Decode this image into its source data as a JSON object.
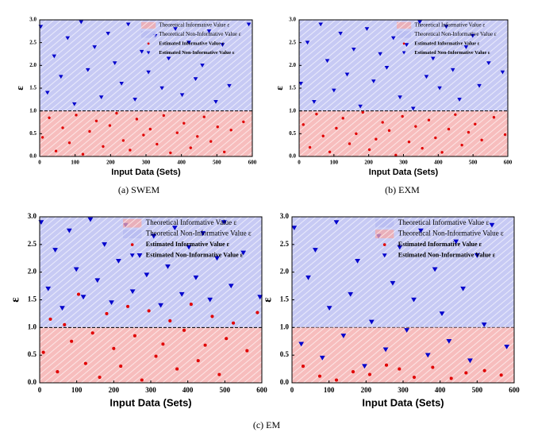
{
  "captions": [
    "(a) SWEM",
    "(b) EXM",
    "(c) EM"
  ],
  "chart_data": [
    {
      "type": "scatter",
      "x_label": "Input Data (Sets)",
      "y_label": "ε",
      "xlim": [
        0,
        600
      ],
      "xticks": [
        0,
        100,
        200,
        300,
        400,
        500,
        600
      ],
      "ylim": [
        0,
        3
      ],
      "yticks": [
        {
          "value": 0,
          "label": "0.0"
        },
        0.5,
        {
          "value": 1,
          "label": "1.0"
        },
        1.5,
        {
          "value": 2,
          "label": "2.0"
        },
        2.5,
        {
          "value": 3,
          "label": "3.0"
        }
      ],
      "regions": [
        {
          "name": "Theoretical Informative Value ε",
          "color": "#f4a7a7",
          "range": [
            0,
            1
          ]
        },
        {
          "name": "Theoretical Non-Informative Value ε",
          "color": "#b4b8f0",
          "range": [
            1,
            3
          ]
        }
      ],
      "series": [
        {
          "name": "Estimated Informative Value ε",
          "color": "#e00000",
          "marker": "circle",
          "x": [
            8,
            27,
            46,
            65,
            84,
            103,
            122,
            141,
            160,
            179,
            198,
            217,
            236,
            255,
            274,
            293,
            312,
            331,
            350,
            369,
            388,
            407,
            426,
            445,
            464,
            483,
            502,
            521,
            540,
            575
          ],
          "values": [
            0.42,
            0.85,
            0.12,
            0.63,
            0.3,
            0.91,
            0.05,
            0.55,
            0.78,
            0.22,
            0.68,
            0.95,
            0.35,
            0.14,
            0.82,
            0.47,
            0.6,
            0.27,
            0.9,
            0.08,
            0.52,
            0.73,
            0.19,
            0.44,
            0.87,
            0.33,
            0.65,
            0.1,
            0.58,
            0.76
          ]
        },
        {
          "name": "Estimated Non-Informative Value ε",
          "color": "#0000cc",
          "marker": "triangle",
          "x": [
            3,
            22,
            41,
            60,
            79,
            98,
            117,
            136,
            155,
            174,
            193,
            212,
            231,
            250,
            269,
            288,
            307,
            326,
            345,
            364,
            383,
            402,
            421,
            440,
            459,
            478,
            497,
            516,
            535,
            590
          ],
          "values": [
            2.85,
            1.4,
            2.2,
            1.75,
            2.6,
            1.15,
            2.95,
            1.9,
            2.4,
            1.3,
            2.7,
            2.05,
            1.6,
            2.9,
            1.25,
            2.3,
            1.85,
            2.65,
            1.5,
            2.15,
            2.8,
            1.35,
            2.5,
            1.7,
            2.0,
            2.75,
            1.2,
            2.45,
            1.55,
            2.9
          ]
        }
      ]
    },
    {
      "type": "scatter",
      "x_label": "Input Data (Sets)",
      "y_label": "ε",
      "xlim": [
        0,
        600
      ],
      "xticks": [
        0,
        100,
        200,
        300,
        400,
        500,
        600
      ],
      "ylim": [
        0,
        3
      ],
      "yticks": [
        {
          "value": 0,
          "label": "0.0"
        },
        0.5,
        {
          "value": 1,
          "label": "1.0"
        },
        1.5,
        {
          "value": 2,
          "label": "2.0"
        },
        2.5,
        {
          "value": 3,
          "label": "3.0"
        }
      ],
      "regions": [
        {
          "name": "Theoretical Informative Value ε",
          "color": "#f4a7a7",
          "range": [
            0,
            1
          ]
        },
        {
          "name": "Theoretical Non-Informative Value ε",
          "color": "#b4b8f0",
          "range": [
            1,
            3
          ]
        }
      ],
      "series": [
        {
          "name": "Estimated Informative Value ε",
          "color": "#e00000",
          "marker": "circle",
          "x": [
            12,
            31,
            50,
            69,
            88,
            107,
            126,
            145,
            164,
            183,
            202,
            221,
            240,
            259,
            278,
            297,
            316,
            335,
            354,
            373,
            392,
            411,
            430,
            449,
            468,
            487,
            506,
            525,
            560,
            592
          ],
          "values": [
            0.7,
            0.2,
            0.93,
            0.45,
            0.1,
            0.62,
            0.84,
            0.28,
            0.5,
            0.97,
            0.15,
            0.38,
            0.75,
            0.57,
            0.03,
            0.88,
            0.32,
            0.66,
            0.18,
            0.8,
            0.41,
            0.09,
            0.6,
            0.92,
            0.25,
            0.53,
            0.71,
            0.36,
            0.86,
            0.48
          ]
        },
        {
          "name": "Estimated Non-Informative Value ε",
          "color": "#0000cc",
          "marker": "triangle",
          "x": [
            5,
            24,
            43,
            62,
            81,
            100,
            119,
            138,
            157,
            176,
            195,
            214,
            233,
            252,
            271,
            290,
            309,
            328,
            347,
            366,
            385,
            404,
            423,
            442,
            461,
            480,
            499,
            518,
            545,
            585
          ],
          "values": [
            1.6,
            2.5,
            1.2,
            2.9,
            2.1,
            1.45,
            2.7,
            1.8,
            2.35,
            1.1,
            2.8,
            1.65,
            2.25,
            1.95,
            2.6,
            1.3,
            2.45,
            1.05,
            2.95,
            1.75,
            2.15,
            1.5,
            2.85,
            1.9,
            1.25,
            2.4,
            2.65,
            1.55,
            2.05,
            1.85
          ]
        }
      ]
    },
    {
      "type": "scatter",
      "x_label": "Input Data (Sets)",
      "y_label": "ε",
      "xlim": [
        0,
        600
      ],
      "xticks": [
        0,
        100,
        200,
        300,
        400,
        500,
        600
      ],
      "ylim": [
        0,
        3
      ],
      "yticks": [
        {
          "value": 0,
          "label": "0.0"
        },
        0.5,
        {
          "value": 1,
          "label": "1.0"
        },
        1.5,
        {
          "value": 2,
          "label": "2.0"
        },
        2.5,
        {
          "value": 3,
          "label": "3.0"
        }
      ],
      "regions": [
        {
          "name": "Theoretical Informative Value ε",
          "color": "#f4a7a7",
          "range": [
            0,
            1
          ]
        },
        {
          "name": "Theoretical Non-Informative Value ε",
          "color": "#b4b8f0",
          "range": [
            1,
            3
          ]
        }
      ],
      "series": [
        {
          "name": "Estimated Informative Value ε",
          "color": "#e00000",
          "marker": "circle",
          "x": [
            10,
            29,
            48,
            67,
            86,
            105,
            124,
            143,
            162,
            181,
            200,
            219,
            238,
            257,
            276,
            295,
            314,
            333,
            352,
            371,
            390,
            409,
            428,
            447,
            466,
            485,
            504,
            523,
            560,
            588
          ],
          "values": [
            0.55,
            1.15,
            0.2,
            1.05,
            0.75,
            1.6,
            0.35,
            0.9,
            0.1,
            1.25,
            0.62,
            0.3,
            1.38,
            0.85,
            0.05,
            1.3,
            0.48,
            0.7,
            1.12,
            0.25,
            0.95,
            1.42,
            0.4,
            0.68,
            1.2,
            0.15,
            0.8,
            1.08,
            0.58,
            1.27
          ]
        },
        {
          "name": "Estimated Non-Informative Value ε",
          "color": "#0000cc",
          "marker": "triangle",
          "x": [
            4,
            23,
            42,
            61,
            80,
            99,
            118,
            137,
            156,
            175,
            194,
            213,
            232,
            251,
            270,
            289,
            308,
            327,
            346,
            365,
            384,
            403,
            422,
            441,
            460,
            479,
            498,
            517,
            550,
            595
          ],
          "values": [
            2.9,
            1.7,
            2.4,
            1.35,
            2.75,
            2.05,
            1.55,
            2.95,
            1.85,
            2.5,
            1.45,
            2.2,
            2.85,
            1.65,
            2.3,
            1.95,
            2.65,
            1.4,
            2.1,
            2.8,
            1.6,
            2.45,
            1.9,
            2.7,
            1.5,
            2.25,
            2.9,
            1.75,
            2.35,
            1.55
          ]
        }
      ]
    },
    {
      "type": "scatter",
      "x_label": "Input Data (Sets)",
      "y_label": "ε",
      "xlim": [
        0,
        600
      ],
      "xticks": [
        0,
        100,
        200,
        300,
        400,
        500,
        600
      ],
      "ylim": [
        0,
        3
      ],
      "yticks": [
        {
          "value": 0,
          "label": "0.0"
        },
        0.5,
        {
          "value": 1,
          "label": "1.0"
        },
        1.5,
        {
          "value": 2,
          "label": "2.0"
        },
        2.5,
        {
          "value": 3,
          "label": "3.0"
        }
      ],
      "regions": [
        {
          "name": "Theoretical Informative Value ε",
          "color": "#b4b8f0",
          "range": [
            1,
            3
          ]
        },
        {
          "name": "Theoretical Non-Informative Value ε",
          "color": "#f4a7a7",
          "range": [
            0,
            1
          ]
        }
      ],
      "series": [
        {
          "name": "Estimated Informative Value ε",
          "color": "#e00000",
          "marker": "circle",
          "x": [
            30,
            75,
            120,
            165,
            210,
            255,
            290,
            330,
            380,
            430,
            470,
            520,
            565
          ],
          "values": [
            0.3,
            0.12,
            0.05,
            0.2,
            0.15,
            0.32,
            0.25,
            0.1,
            0.28,
            0.08,
            0.18,
            0.22,
            0.14
          ]
        },
        {
          "name": "Estimated Non-Informative Value ε",
          "color": "#0000cc",
          "marker": "triangle",
          "x": [
            6,
            25,
            44,
            63,
            82,
            101,
            120,
            139,
            158,
            177,
            196,
            215,
            234,
            253,
            272,
            291,
            310,
            329,
            348,
            367,
            386,
            405,
            424,
            443,
            462,
            481,
            500,
            519,
            540,
            580
          ],
          "values": [
            2.8,
            0.7,
            1.9,
            2.4,
            0.45,
            1.35,
            2.9,
            0.85,
            1.6,
            2.2,
            0.3,
            1.1,
            2.65,
            0.6,
            1.8,
            2.45,
            0.95,
            1.5,
            2.75,
            0.5,
            2.05,
            1.25,
            0.75,
            2.55,
            1.7,
            0.4,
            2.3,
            1.05,
            2.85,
            0.65
          ]
        }
      ]
    }
  ]
}
